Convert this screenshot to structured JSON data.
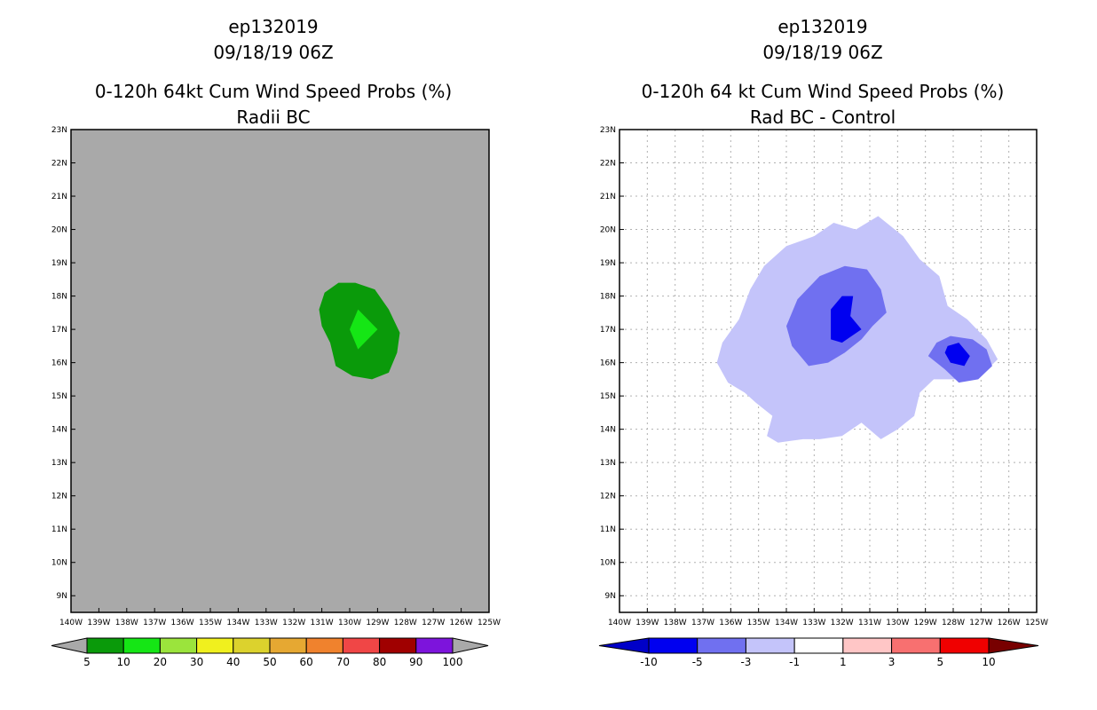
{
  "colors": {
    "left_background": "#a9a9a9",
    "left_prob_colors": [
      "#0a9a0a",
      "#15e615",
      "#9be43c",
      "#f0f01e",
      "#dcd22d",
      "#e6a832",
      "#f0822d",
      "#f04646",
      "#a00000",
      "#7d14dc"
    ],
    "diff_colors": [
      "#0000c8",
      "#0000f0",
      "#7070f0",
      "#c4c4fa",
      "#ffffff",
      "#ffc6c6",
      "#f87070",
      "#f00000",
      "#780000"
    ]
  },
  "chart_data": [
    {
      "type": "heatmap",
      "storm": "ep132019",
      "valid": "09/18/19 06Z",
      "title": "0-120h 64kt Cum Wind Speed Probs (%)",
      "subtitle": "Radii BC",
      "x_ticks": [
        "140W",
        "139W",
        "138W",
        "137W",
        "136W",
        "135W",
        "134W",
        "133W",
        "132W",
        "131W",
        "130W",
        "129W",
        "128W",
        "127W",
        "126W",
        "125W"
      ],
      "y_ticks": [
        "23N",
        "22N",
        "21N",
        "20N",
        "19N",
        "18N",
        "17N",
        "16N",
        "15N",
        "14N",
        "13N",
        "12N",
        "11N",
        "10N",
        "9N"
      ],
      "xlim": [
        -140,
        -125
      ],
      "ylim": [
        8.5,
        23
      ],
      "grid": false,
      "legend_labels": [
        "5",
        "10",
        "20",
        "30",
        "40",
        "50",
        "60",
        "70",
        "80",
        "90",
        "100"
      ],
      "contours": [
        {
          "level": "5-10%",
          "color_index": 0,
          "points": [
            [
              -131.1,
              17.6
            ],
            [
              -130.9,
              18.1
            ],
            [
              -130.4,
              18.4
            ],
            [
              -129.8,
              18.4
            ],
            [
              -129.1,
              18.2
            ],
            [
              -128.6,
              17.6
            ],
            [
              -128.2,
              16.9
            ],
            [
              -128.3,
              16.3
            ],
            [
              -128.6,
              15.7
            ],
            [
              -129.2,
              15.5
            ],
            [
              -129.9,
              15.6
            ],
            [
              -130.5,
              15.9
            ],
            [
              -130.7,
              16.6
            ],
            [
              -131.0,
              17.1
            ]
          ]
        },
        {
          "level": "10-20%",
          "color_index": 1,
          "points": [
            [
              -130.0,
              17.0
            ],
            [
              -129.7,
              17.6
            ],
            [
              -129.0,
              17.0
            ],
            [
              -129.7,
              16.4
            ]
          ]
        }
      ]
    },
    {
      "type": "heatmap",
      "storm": "ep132019",
      "valid": "09/18/19 06Z",
      "title": "0-120h 64 kt Cum Wind Speed Probs (%)",
      "subtitle": "Rad BC - Control",
      "x_ticks": [
        "140W",
        "139W",
        "138W",
        "137W",
        "136W",
        "135W",
        "134W",
        "133W",
        "132W",
        "131W",
        "130W",
        "129W",
        "128W",
        "127W",
        "126W",
        "125W"
      ],
      "y_ticks": [
        "23N",
        "22N",
        "21N",
        "20N",
        "19N",
        "18N",
        "17N",
        "16N",
        "15N",
        "14N",
        "13N",
        "12N",
        "11N",
        "10N",
        "9N"
      ],
      "xlim": [
        -140,
        -125
      ],
      "ylim": [
        8.5,
        23
      ],
      "grid": true,
      "legend_labels": [
        "-10",
        "-5",
        "-3",
        "-1",
        "1",
        "3",
        "5",
        "10"
      ],
      "contours": [
        {
          "level": "-1 to -3",
          "color_index": 3,
          "points": [
            [
              -136.3,
              16.6
            ],
            [
              -135.7,
              17.3
            ],
            [
              -135.3,
              18.2
            ],
            [
              -134.8,
              18.9
            ],
            [
              -134.0,
              19.5
            ],
            [
              -133.0,
              19.8
            ],
            [
              -132.3,
              20.2
            ],
            [
              -131.5,
              20.0
            ],
            [
              -130.7,
              20.4
            ],
            [
              -129.8,
              19.8
            ],
            [
              -129.2,
              19.1
            ],
            [
              -128.5,
              18.6
            ],
            [
              -128.2,
              17.7
            ],
            [
              -127.5,
              17.3
            ],
            [
              -126.8,
              16.7
            ],
            [
              -126.4,
              16.1
            ],
            [
              -126.9,
              15.7
            ],
            [
              -127.8,
              15.5
            ],
            [
              -128.7,
              15.5
            ],
            [
              -129.2,
              15.1
            ],
            [
              -129.4,
              14.4
            ],
            [
              -130.0,
              14.0
            ],
            [
              -130.6,
              13.7
            ],
            [
              -131.3,
              14.2
            ],
            [
              -132.0,
              13.8
            ],
            [
              -132.8,
              13.7
            ],
            [
              -133.4,
              13.7
            ],
            [
              -134.3,
              13.6
            ],
            [
              -134.7,
              13.8
            ],
            [
              -134.5,
              14.4
            ],
            [
              -135.1,
              14.8
            ],
            [
              -135.5,
              15.1
            ],
            [
              -136.1,
              15.4
            ],
            [
              -136.5,
              16.0
            ]
          ]
        },
        {
          "level": "-3 to -5",
          "color_index": 2,
          "points": [
            [
              -133.6,
              17.9
            ],
            [
              -132.8,
              18.6
            ],
            [
              -131.9,
              18.9
            ],
            [
              -131.1,
              18.8
            ],
            [
              -130.6,
              18.2
            ],
            [
              -130.4,
              17.5
            ],
            [
              -130.9,
              17.1
            ],
            [
              -131.3,
              16.7
            ],
            [
              -131.9,
              16.3
            ],
            [
              -132.5,
              16.0
            ],
            [
              -133.2,
              15.9
            ],
            [
              -133.8,
              16.5
            ],
            [
              -134.0,
              17.1
            ]
          ]
        },
        {
          "level": "-5 to -10",
          "color_index": 1,
          "points": [
            [
              -132.4,
              17.6
            ],
            [
              -132.0,
              18.0
            ],
            [
              -131.6,
              18.0
            ],
            [
              -131.7,
              17.4
            ],
            [
              -131.3,
              17.0
            ],
            [
              -132.0,
              16.6
            ],
            [
              -132.4,
              16.7
            ]
          ]
        },
        {
          "level": "-3 to -5",
          "color_index": 2,
          "points": [
            [
              -128.6,
              16.6
            ],
            [
              -128.1,
              16.8
            ],
            [
              -127.3,
              16.7
            ],
            [
              -126.8,
              16.4
            ],
            [
              -126.6,
              15.9
            ],
            [
              -127.1,
              15.5
            ],
            [
              -127.8,
              15.4
            ],
            [
              -128.3,
              15.8
            ],
            [
              -128.9,
              16.2
            ]
          ]
        },
        {
          "level": "-5 to -10",
          "color_index": 1,
          "points": [
            [
              -128.2,
              16.5
            ],
            [
              -127.8,
              16.6
            ],
            [
              -127.4,
              16.2
            ],
            [
              -127.6,
              15.9
            ],
            [
              -128.1,
              16.0
            ],
            [
              -128.3,
              16.3
            ]
          ]
        }
      ]
    }
  ]
}
